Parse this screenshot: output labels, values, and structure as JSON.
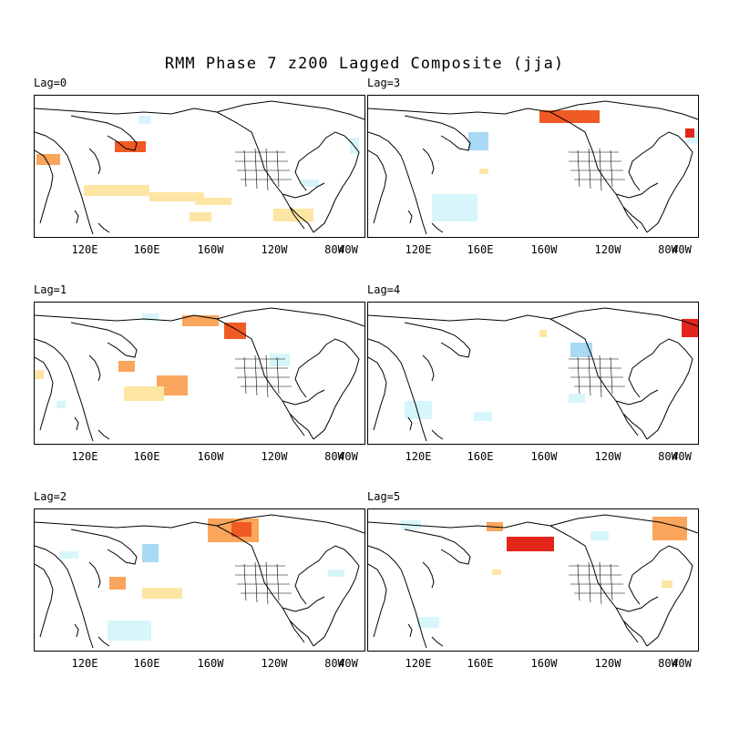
{
  "title": "RMM Phase 7 z200 Lagged Composite (jja)",
  "x_tick_labels": [
    "120E",
    "160E",
    "160W",
    "120W",
    "80W",
    "40W"
  ],
  "colors": {
    "positive_light": "#fde6a3",
    "positive_medium": "#f9a55b",
    "positive_strong": "#f05a23",
    "positive_max": "#e3261b",
    "negative_light": "#d7f6fb",
    "negative_medium": "#a9d9f5",
    "negative_strong": "#6fa9e8",
    "coastline": "#000000"
  },
  "panels": [
    {
      "label": "Lag=0"
    },
    {
      "label": "Lag=1"
    },
    {
      "label": "Lag=2"
    },
    {
      "label": "Lag=3"
    },
    {
      "label": "Lag=4"
    },
    {
      "label": "Lag=5"
    }
  ]
}
